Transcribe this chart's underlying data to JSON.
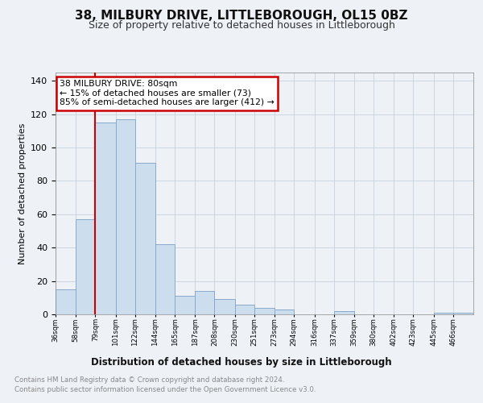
{
  "title": "38, MILBURY DRIVE, LITTLEBOROUGH, OL15 0BZ",
  "subtitle": "Size of property relative to detached houses in Littleborough",
  "xlabel": "Distribution of detached houses by size in Littleborough",
  "ylabel": "Number of detached properties",
  "footnote1": "Contains HM Land Registry data © Crown copyright and database right 2024.",
  "footnote2": "Contains public sector information licensed under the Open Government Licence v3.0.",
  "bar_color": "#ccdded",
  "bar_edge_color": "#88aacc",
  "annotation_box_color": "#cc0000",
  "annotation_line1": "38 MILBURY DRIVE: 80sqm",
  "annotation_line2": "← 15% of detached houses are smaller (73)",
  "annotation_line3": "85% of semi-detached houses are larger (412) →",
  "vline_x_idx": 2,
  "categories": [
    "36sqm",
    "58sqm",
    "79sqm",
    "101sqm",
    "122sqm",
    "144sqm",
    "165sqm",
    "187sqm",
    "208sqm",
    "230sqm",
    "251sqm",
    "273sqm",
    "294sqm",
    "316sqm",
    "337sqm",
    "359sqm",
    "380sqm",
    "402sqm",
    "423sqm",
    "445sqm",
    "466sqm"
  ],
  "bin_edges": [
    36,
    58,
    79,
    101,
    122,
    144,
    165,
    187,
    208,
    230,
    251,
    273,
    294,
    316,
    337,
    359,
    380,
    402,
    423,
    445,
    466,
    488
  ],
  "values": [
    15,
    57,
    115,
    117,
    91,
    42,
    11,
    14,
    9,
    6,
    4,
    3,
    0,
    0,
    2,
    0,
    0,
    0,
    0,
    1,
    1
  ],
  "ylim": [
    0,
    145
  ],
  "yticks": [
    0,
    20,
    40,
    60,
    80,
    100,
    120,
    140
  ],
  "background_color": "#eef2f6",
  "plot_bg_color": "#eef2f6",
  "grid_color": "#c0ccd8",
  "title_fontsize": 11,
  "subtitle_fontsize": 9
}
